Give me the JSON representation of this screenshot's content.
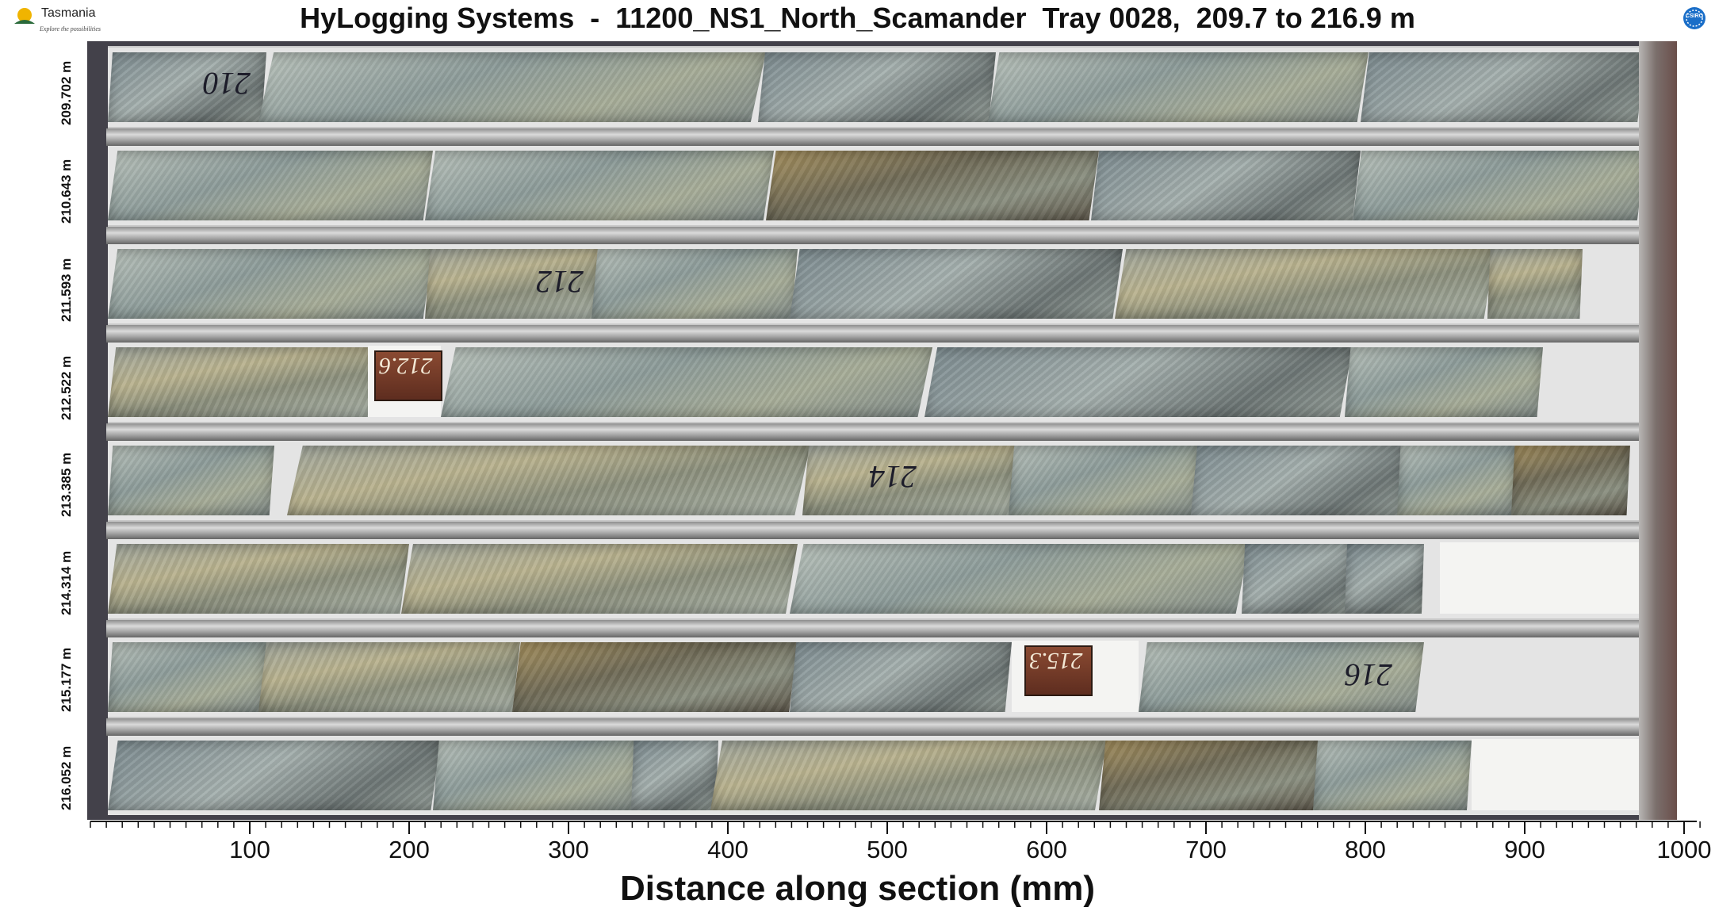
{
  "header": {
    "left_logo": {
      "brand": "Tasmania",
      "tagline": "Explore the possibilities"
    },
    "title": "HyLogging Systems  -  11200_NS1_North_Scamander  Tray 0028,  209.7 to 216.9 m",
    "right_logo": {
      "text": "CSIRO"
    }
  },
  "tray": {
    "rows": [
      {
        "depth_label": "209.702 m",
        "marking": "210"
      },
      {
        "depth_label": "210.643 m",
        "marking": ""
      },
      {
        "depth_label": "211.593 m",
        "marking": "212"
      },
      {
        "depth_label": "212.522 m",
        "marking": "212.6"
      },
      {
        "depth_label": "213.385 m",
        "marking": "214"
      },
      {
        "depth_label": "214.314 m",
        "marking": ""
      },
      {
        "depth_label": "215.177 m",
        "marking": "215.3",
        "marking2": "216"
      },
      {
        "depth_label": "216.052 m",
        "marking": ""
      }
    ]
  },
  "chart_data": {
    "type": "image",
    "xlabel": "Distance along section (mm)",
    "x_ticks_major": [
      100,
      200,
      300,
      400,
      500,
      600,
      700,
      800,
      900,
      1000
    ],
    "x_range": [
      0,
      1010
    ]
  },
  "colors": {
    "tray_frame": "#43414a",
    "rail": "#bdbdbd",
    "text": "#111111"
  }
}
